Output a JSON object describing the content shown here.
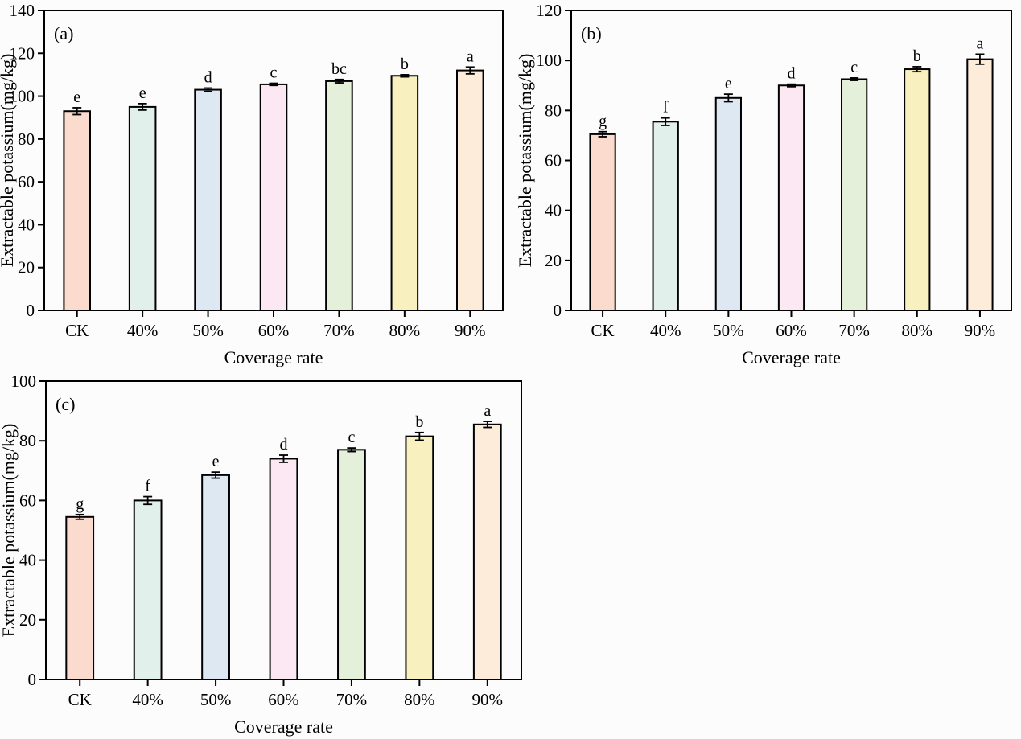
{
  "page": {
    "background_color": "#fdfcfc",
    "text_color": "#000000",
    "axis_color": "#000000"
  },
  "bar_fills": [
    "#fadbcd",
    "#e2f0ec",
    "#dee8f3",
    "#fce8f2",
    "#e4f0d9",
    "#f9f0c0",
    "#fcecd9"
  ],
  "bar_border_color": "#000000",
  "chart_data": [
    {
      "type": "bar",
      "panel_label": "(a)",
      "xlabel": "Coverage rate",
      "ylabel": "Extractable potassium(mg/kg)",
      "categories": [
        "CK",
        "40%",
        "50%",
        "60%",
        "70%",
        "80%",
        "90%"
      ],
      "values": [
        93,
        95,
        103,
        105.5,
        107,
        109.5,
        112
      ],
      "errors": [
        1.6,
        1.5,
        0.8,
        0.5,
        0.8,
        0.5,
        1.6
      ],
      "sig_letters": [
        "e",
        "e",
        "d",
        "c",
        "bc",
        "b",
        "a"
      ],
      "ylim": [
        0,
        140
      ],
      "ytick_step": 20,
      "grid": false,
      "legend": false
    },
    {
      "type": "bar",
      "panel_label": "(b)",
      "xlabel": "Coverage rate",
      "ylabel": "Extractable potassium(mg/kg)",
      "categories": [
        "CK",
        "40%",
        "50%",
        "60%",
        "70%",
        "80%",
        "90%"
      ],
      "values": [
        70.5,
        75.5,
        85,
        90,
        92.5,
        96.5,
        100.5
      ],
      "errors": [
        1.0,
        1.5,
        1.5,
        0.5,
        0.5,
        1.0,
        2.0
      ],
      "sig_letters": [
        "g",
        "f",
        "e",
        "d",
        "c",
        "b",
        "a"
      ],
      "ylim": [
        0,
        120
      ],
      "ytick_step": 20,
      "grid": false,
      "legend": false
    },
    {
      "type": "bar",
      "panel_label": "(c)",
      "xlabel": "Coverage rate",
      "ylabel": "Extractable potassium(mg/kg)",
      "categories": [
        "CK",
        "40%",
        "50%",
        "60%",
        "70%",
        "80%",
        "90%"
      ],
      "values": [
        54.5,
        60,
        68.5,
        74,
        77,
        81.5,
        85.5
      ],
      "errors": [
        0.8,
        1.3,
        1.0,
        1.2,
        0.6,
        1.3,
        1.0
      ],
      "sig_letters": [
        "g",
        "f",
        "e",
        "d",
        "c",
        "b",
        "a"
      ],
      "ylim": [
        0,
        100
      ],
      "ytick_step": 20,
      "grid": false,
      "legend": false
    }
  ]
}
